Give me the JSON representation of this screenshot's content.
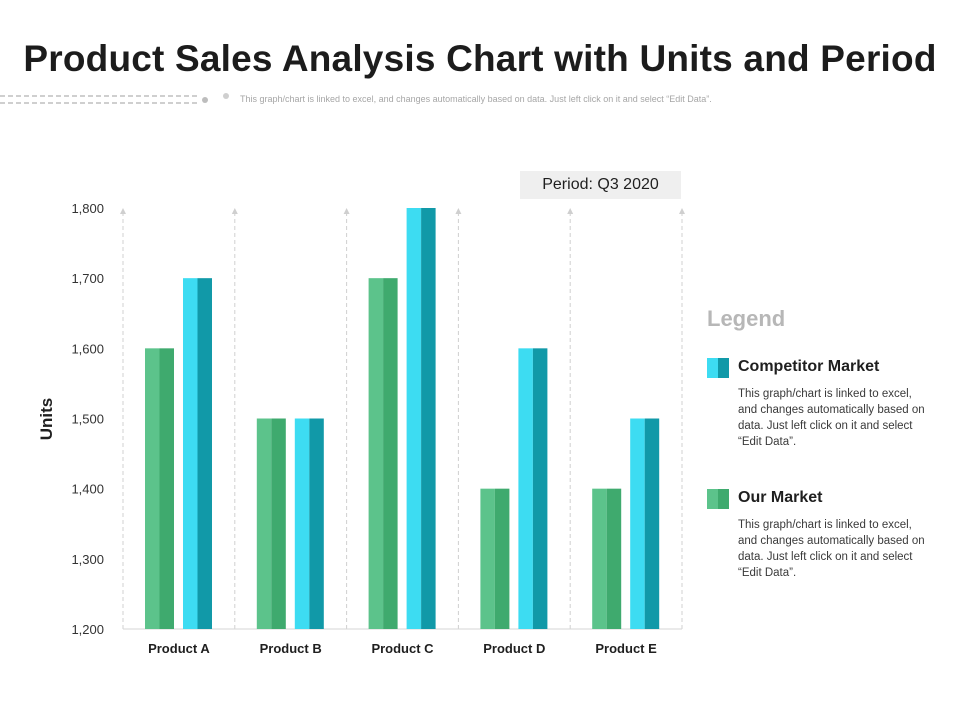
{
  "header": {
    "title": "Product Sales Analysis Chart with Units and Period",
    "subtitle": "This graph/chart is linked to excel, and changes automatically  based on data. Just left click on it and select “Edit Data”."
  },
  "period_label": "Period: Q3 2020",
  "legend": {
    "title": "Legend",
    "items": [
      {
        "name": "Competitor Market",
        "description": "This graph/chart is linked to excel, and changes automatically based on data. Just left click on it and select “Edit Data”.",
        "color_light": "#3ddcf2",
        "color_dark": "#1199a8"
      },
      {
        "name": "Our Market",
        "description": "This graph/chart is linked to excel, and changes automatically based on data. Just left click on it and select “Edit Data”.",
        "color_light": "#5cc38b",
        "color_dark": "#3faa6e"
      }
    ]
  },
  "chart_data": {
    "type": "bar",
    "title": "",
    "xlabel": "",
    "ylabel": "Units",
    "categories": [
      "Product A",
      "Product B",
      "Product C",
      "Product D",
      "Product E"
    ],
    "series": [
      {
        "name": "Our Market",
        "values": [
          1600,
          1500,
          1700,
          1400,
          1400
        ]
      },
      {
        "name": "Competitor Market",
        "values": [
          1700,
          1500,
          1800,
          1600,
          1500
        ]
      }
    ],
    "ylim": [
      1200,
      1800
    ],
    "yticks": [
      "1,200",
      "1,300",
      "1,400",
      "1,500",
      "1,600",
      "1,700",
      "1,800"
    ],
    "grid": false,
    "legend_position": "right"
  }
}
